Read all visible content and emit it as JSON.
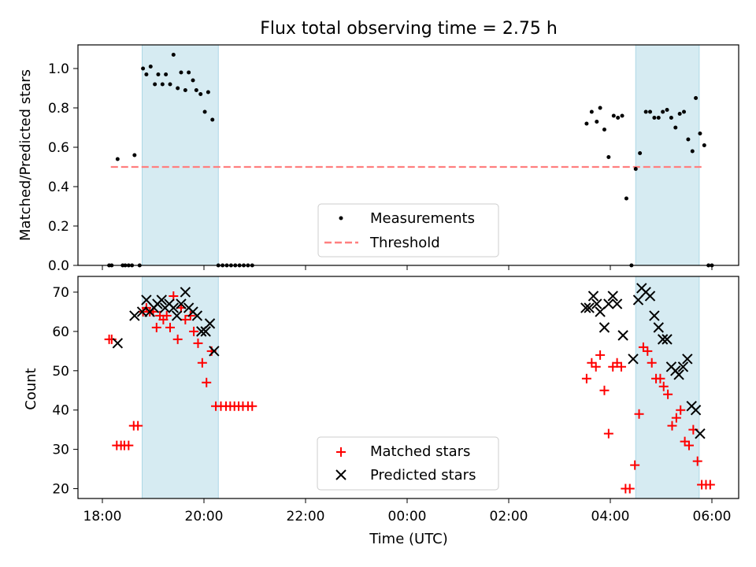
{
  "chart_data": [
    {
      "type": "scatter",
      "title": "Flux total observing time = 2.75 h",
      "xlabel": "",
      "ylabel": "Matched/Predicted stars",
      "xlim": [
        "17:45",
        "06:30"
      ],
      "ylim": [
        0,
        1.12
      ],
      "yticks": [
        "0.0",
        "0.2",
        "0.4",
        "0.6",
        "0.8",
        "1.0"
      ],
      "shaded_intervals": [
        [
          "18:47",
          "20:17"
        ],
        [
          "04:30",
          "05:45"
        ]
      ],
      "threshold": {
        "label": "Threshold",
        "value": 0.5,
        "x_start": "18:10",
        "x_end": "05:50",
        "color": "#ff7f7f"
      },
      "legend": {
        "position": "bottom-center",
        "entries": [
          "Measurements",
          "Threshold"
        ]
      },
      "series": [
        {
          "name": "Measurements",
          "marker": "dot",
          "color": "#000000",
          "points": [
            [
              "18:08",
              0
            ],
            [
              "18:11",
              0
            ],
            [
              "18:18",
              0.54
            ],
            [
              "18:24",
              0
            ],
            [
              "18:27",
              0
            ],
            [
              "18:31",
              0
            ],
            [
              "18:35",
              0
            ],
            [
              "18:38",
              0.56
            ],
            [
              "18:44",
              0
            ],
            [
              "18:48",
              1.0
            ],
            [
              "18:52",
              0.97
            ],
            [
              "18:57",
              1.01
            ],
            [
              "19:02",
              0.92
            ],
            [
              "19:06",
              0.97
            ],
            [
              "19:11",
              0.92
            ],
            [
              "19:15",
              0.97
            ],
            [
              "19:20",
              0.92
            ],
            [
              "19:24",
              1.07
            ],
            [
              "19:29",
              0.9
            ],
            [
              "19:33",
              0.98
            ],
            [
              "19:38",
              0.89
            ],
            [
              "19:42",
              0.98
            ],
            [
              "19:47",
              0.94
            ],
            [
              "19:51",
              0.89
            ],
            [
              "19:56",
              0.87
            ],
            [
              "20:01",
              0.78
            ],
            [
              "20:05",
              0.88
            ],
            [
              "20:10",
              0.74
            ],
            [
              "20:17",
              0
            ],
            [
              "20:22",
              0
            ],
            [
              "20:27",
              0
            ],
            [
              "20:32",
              0
            ],
            [
              "20:37",
              0
            ],
            [
              "20:42",
              0
            ],
            [
              "20:47",
              0
            ],
            [
              "20:52",
              0
            ],
            [
              "20:57",
              0
            ],
            [
              "03:32",
              0.72
            ],
            [
              "03:38",
              0.78
            ],
            [
              "03:44",
              0.73
            ],
            [
              "03:48",
              0.8
            ],
            [
              "03:53",
              0.69
            ],
            [
              "03:58",
              0.55
            ],
            [
              "04:04",
              0.76
            ],
            [
              "04:09",
              0.75
            ],
            [
              "04:14",
              0.76
            ],
            [
              "04:19",
              0.34
            ],
            [
              "04:25",
              0
            ],
            [
              "04:30",
              0.49
            ],
            [
              "04:35",
              0.57
            ],
            [
              "04:42",
              0.78
            ],
            [
              "04:47",
              0.78
            ],
            [
              "04:52",
              0.75
            ],
            [
              "04:57",
              0.75
            ],
            [
              "05:02",
              0.78
            ],
            [
              "05:07",
              0.79
            ],
            [
              "05:12",
              0.75
            ],
            [
              "05:17",
              0.7
            ],
            [
              "05:22",
              0.77
            ],
            [
              "05:27",
              0.78
            ],
            [
              "05:32",
              0.64
            ],
            [
              "05:37",
              0.58
            ],
            [
              "05:41",
              0.85
            ],
            [
              "05:46",
              0.67
            ],
            [
              "05:51",
              0.61
            ],
            [
              "05:56",
              0
            ],
            [
              "06:00",
              0
            ]
          ]
        }
      ]
    },
    {
      "type": "scatter",
      "title": "",
      "xlabel": "Time (UTC)",
      "ylabel": "Count",
      "xlim": [
        "17:45",
        "06:30"
      ],
      "ylim": [
        17.5,
        74
      ],
      "yticks": [
        "20",
        "30",
        "40",
        "50",
        "60",
        "70"
      ],
      "xticks": [
        "18:00",
        "20:00",
        "22:00",
        "00:00",
        "02:00",
        "04:00",
        "06:00"
      ],
      "shaded_intervals": [
        [
          "18:47",
          "20:17"
        ],
        [
          "04:30",
          "05:45"
        ]
      ],
      "legend": {
        "position": "bottom-center",
        "entries": [
          "Matched stars",
          "Predicted stars"
        ]
      },
      "series": [
        {
          "name": "Matched stars",
          "marker": "plus",
          "color": "#ff0000",
          "points": [
            [
              "18:08",
              58
            ],
            [
              "18:11",
              58
            ],
            [
              "18:17",
              31
            ],
            [
              "18:22",
              31
            ],
            [
              "18:26",
              31
            ],
            [
              "18:31",
              31
            ],
            [
              "18:37",
              36
            ],
            [
              "18:42",
              36
            ],
            [
              "18:48",
              65
            ],
            [
              "18:52",
              66
            ],
            [
              "18:56",
              65
            ],
            [
              "19:00",
              65
            ],
            [
              "19:04",
              61
            ],
            [
              "19:08",
              64
            ],
            [
              "19:12",
              63
            ],
            [
              "19:16",
              64
            ],
            [
              "19:20",
              61
            ],
            [
              "19:24",
              69
            ],
            [
              "19:29",
              58
            ],
            [
              "19:33",
              66
            ],
            [
              "19:38",
              63
            ],
            [
              "19:44",
              64
            ],
            [
              "19:48",
              60
            ],
            [
              "19:53",
              57
            ],
            [
              "19:58",
              52
            ],
            [
              "20:03",
              47
            ],
            [
              "20:09",
              55
            ],
            [
              "20:14",
              41
            ],
            [
              "20:20",
              41
            ],
            [
              "20:26",
              41
            ],
            [
              "20:31",
              41
            ],
            [
              "20:36",
              41
            ],
            [
              "20:41",
              41
            ],
            [
              "20:46",
              41
            ],
            [
              "20:52",
              41
            ],
            [
              "20:57",
              41
            ],
            [
              "03:32",
              48
            ],
            [
              "03:38",
              52
            ],
            [
              "03:43",
              51
            ],
            [
              "03:48",
              54
            ],
            [
              "03:53",
              45
            ],
            [
              "03:58",
              34
            ],
            [
              "04:03",
              51
            ],
            [
              "04:08",
              52
            ],
            [
              "04:13",
              51
            ],
            [
              "04:18",
              20
            ],
            [
              "04:23",
              20
            ],
            [
              "04:29",
              26
            ],
            [
              "04:34",
              39
            ],
            [
              "04:39",
              56
            ],
            [
              "04:44",
              55
            ],
            [
              "04:49",
              52
            ],
            [
              "04:54",
              48
            ],
            [
              "04:59",
              48
            ],
            [
              "05:03",
              46
            ],
            [
              "05:08",
              44
            ],
            [
              "05:13",
              36
            ],
            [
              "05:18",
              38
            ],
            [
              "05:23",
              40
            ],
            [
              "05:28",
              32
            ],
            [
              "05:33",
              31
            ],
            [
              "05:38",
              35
            ],
            [
              "05:43",
              27
            ],
            [
              "05:48",
              21
            ],
            [
              "05:53",
              21
            ],
            [
              "05:58",
              21
            ]
          ]
        },
        {
          "name": "Predicted stars",
          "marker": "x",
          "color": "#000000",
          "points": [
            [
              "18:18",
              57
            ],
            [
              "18:38",
              64
            ],
            [
              "18:47",
              65
            ],
            [
              "18:52",
              68
            ],
            [
              "18:56",
              65
            ],
            [
              "19:01",
              66
            ],
            [
              "19:05",
              67
            ],
            [
              "19:10",
              68
            ],
            [
              "19:14",
              66
            ],
            [
              "19:19",
              67
            ],
            [
              "19:24",
              66
            ],
            [
              "19:28",
              64
            ],
            [
              "19:33",
              67
            ],
            [
              "19:38",
              70
            ],
            [
              "19:42",
              66
            ],
            [
              "19:47",
              65
            ],
            [
              "19:52",
              64
            ],
            [
              "19:57",
              60
            ],
            [
              "20:02",
              60
            ],
            [
              "20:07",
              62
            ],
            [
              "20:12",
              55
            ],
            [
              "03:31",
              66
            ],
            [
              "03:35",
              66
            ],
            [
              "03:40",
              69
            ],
            [
              "03:44",
              67
            ],
            [
              "03:48",
              65
            ],
            [
              "03:53",
              61
            ],
            [
              "03:58",
              67
            ],
            [
              "04:03",
              69
            ],
            [
              "04:08",
              67
            ],
            [
              "04:15",
              59
            ],
            [
              "04:27",
              53
            ],
            [
              "04:33",
              68
            ],
            [
              "04:37",
              71
            ],
            [
              "04:42",
              70
            ],
            [
              "04:47",
              69
            ],
            [
              "04:52",
              64
            ],
            [
              "04:57",
              61
            ],
            [
              "05:02",
              58
            ],
            [
              "05:07",
              58
            ],
            [
              "05:12",
              51
            ],
            [
              "05:17",
              50
            ],
            [
              "05:21",
              49
            ],
            [
              "05:26",
              51
            ],
            [
              "05:31",
              53
            ],
            [
              "05:36",
              41
            ],
            [
              "05:41",
              40
            ],
            [
              "05:46",
              34
            ]
          ]
        }
      ]
    }
  ]
}
